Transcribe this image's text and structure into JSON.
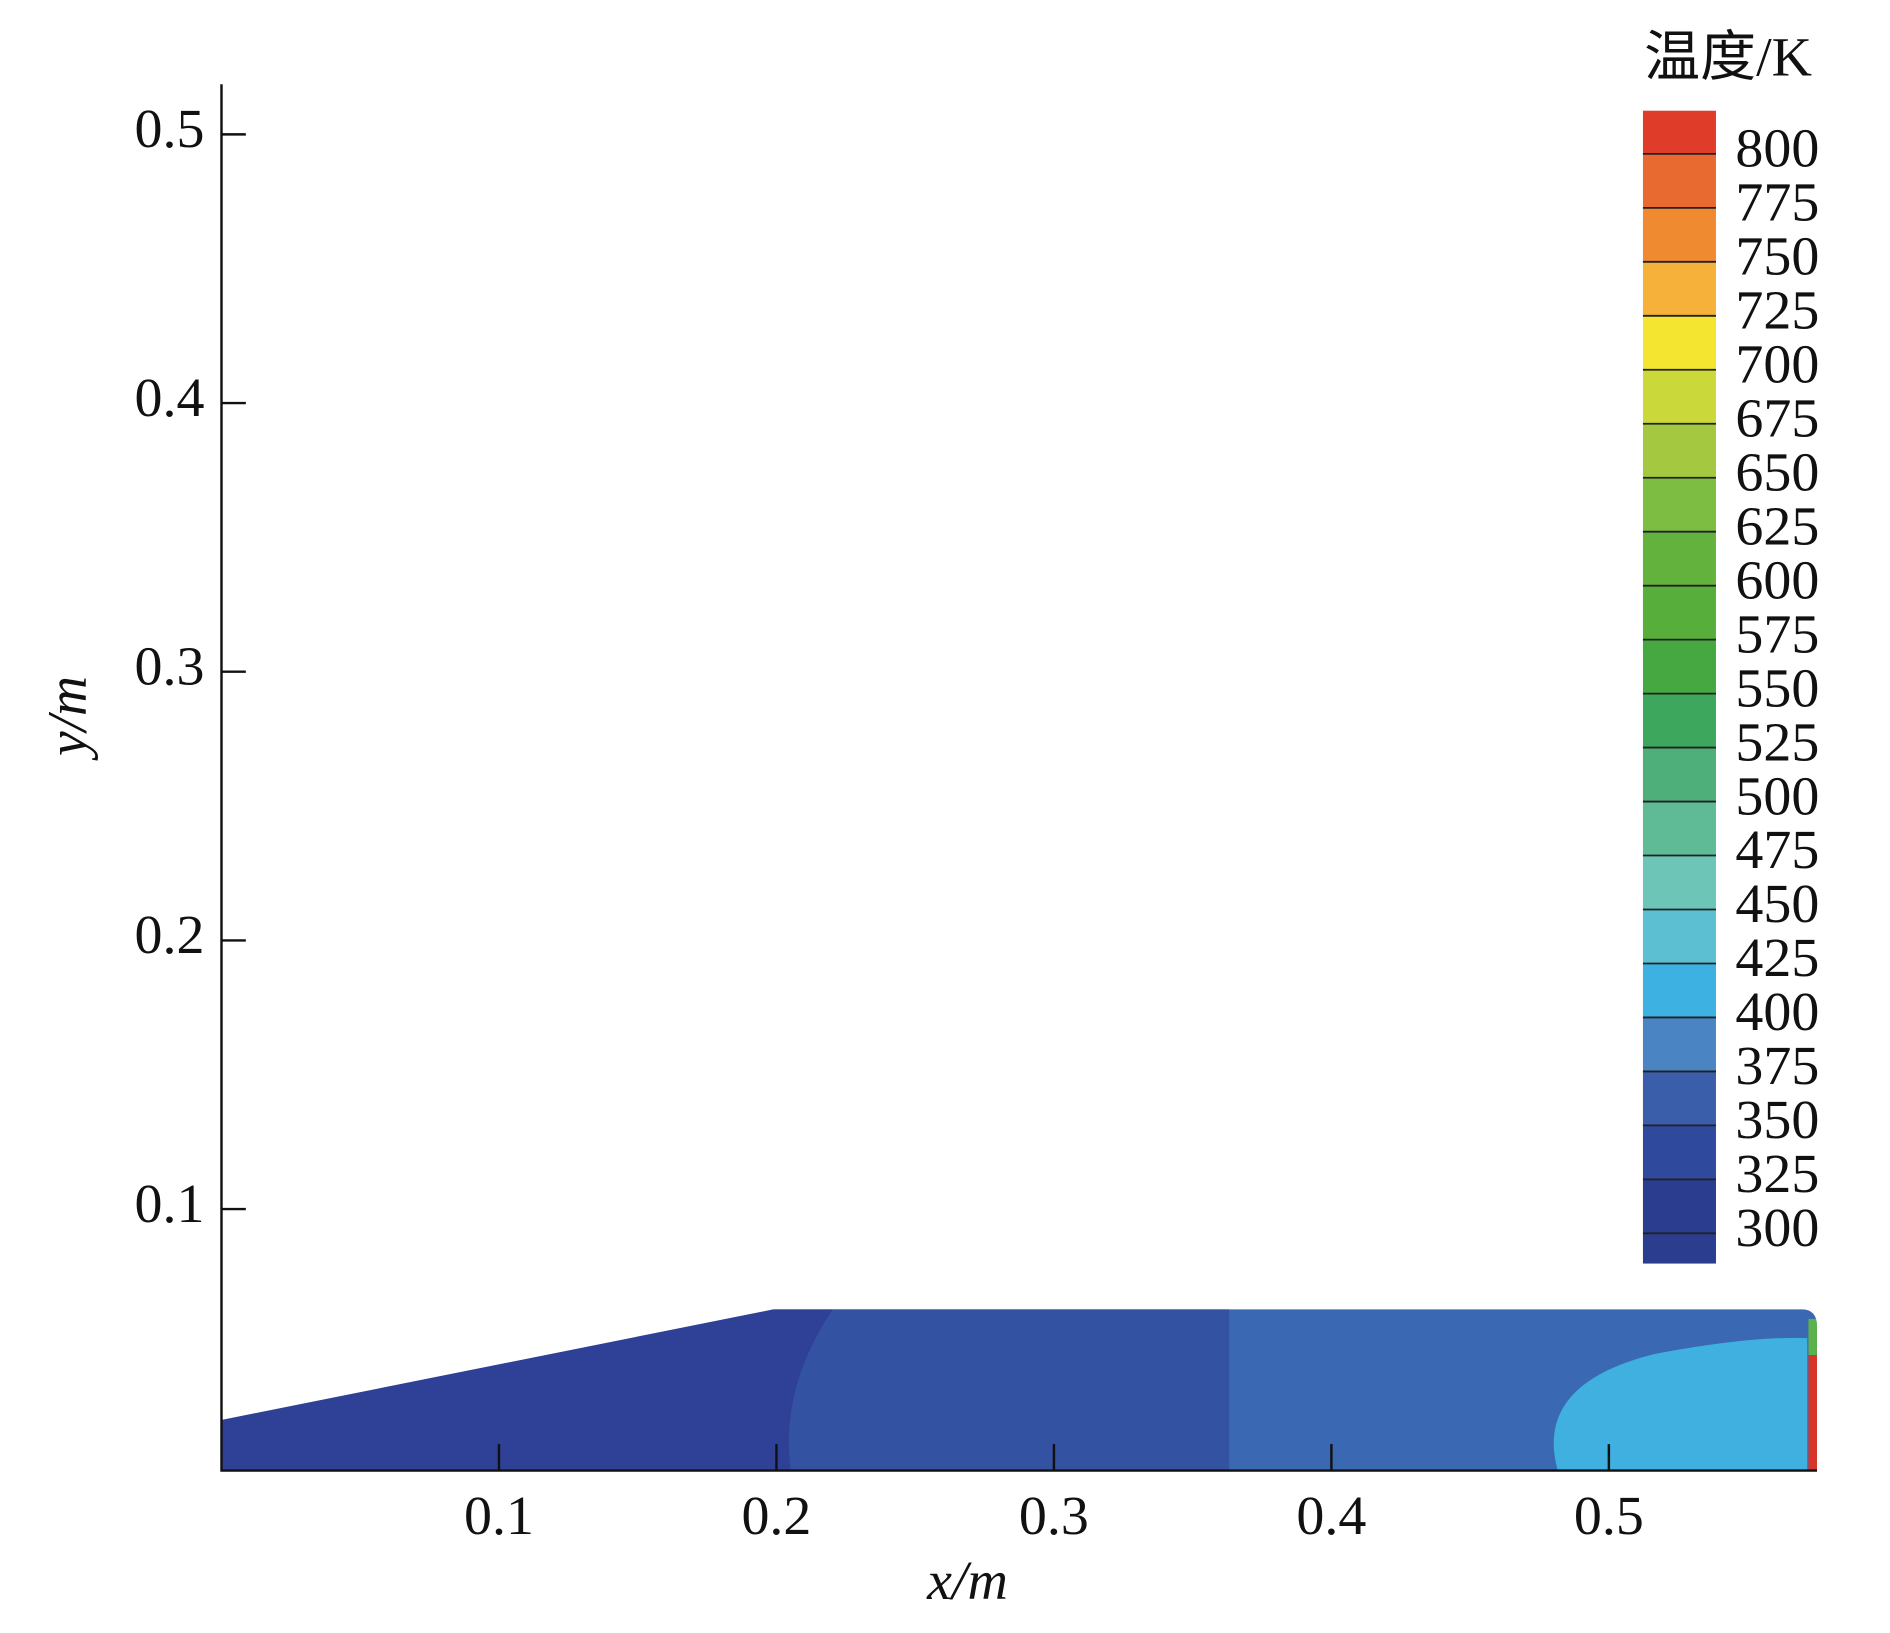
{
  "chart_data": {
    "type": "contour",
    "xlabel": "x/m",
    "ylabel": "y/m",
    "xlim": [
      0,
      0.575
    ],
    "ylim": [
      0,
      0.52
    ],
    "xticks": [
      0.1,
      0.2,
      0.3,
      0.4,
      0.5
    ],
    "yticks": [
      0.1,
      0.2,
      0.3,
      0.4,
      0.5
    ],
    "colorbar": {
      "title": "温度/K",
      "clim": [
        286,
        820
      ],
      "levels": [
        300,
        325,
        350,
        375,
        400,
        425,
        450,
        475,
        500,
        525,
        550,
        575,
        600,
        625,
        650,
        675,
        700,
        725,
        750,
        775,
        800
      ],
      "colors": [
        "#2b3d8f",
        "#2f4a9c",
        "#3a5ea9",
        "#4a84c3",
        "#3db1e1",
        "#5cbfd2",
        "#6cc5b6",
        "#5fba96",
        "#4faf7b",
        "#3ea75e",
        "#46a840",
        "#58ae3a",
        "#64b23e",
        "#7dbd42",
        "#a4c940",
        "#cad83a",
        "#f4e630",
        "#f5b13a",
        "#f08a31",
        "#e96a30",
        "#e03c2a"
      ]
    }
  }
}
